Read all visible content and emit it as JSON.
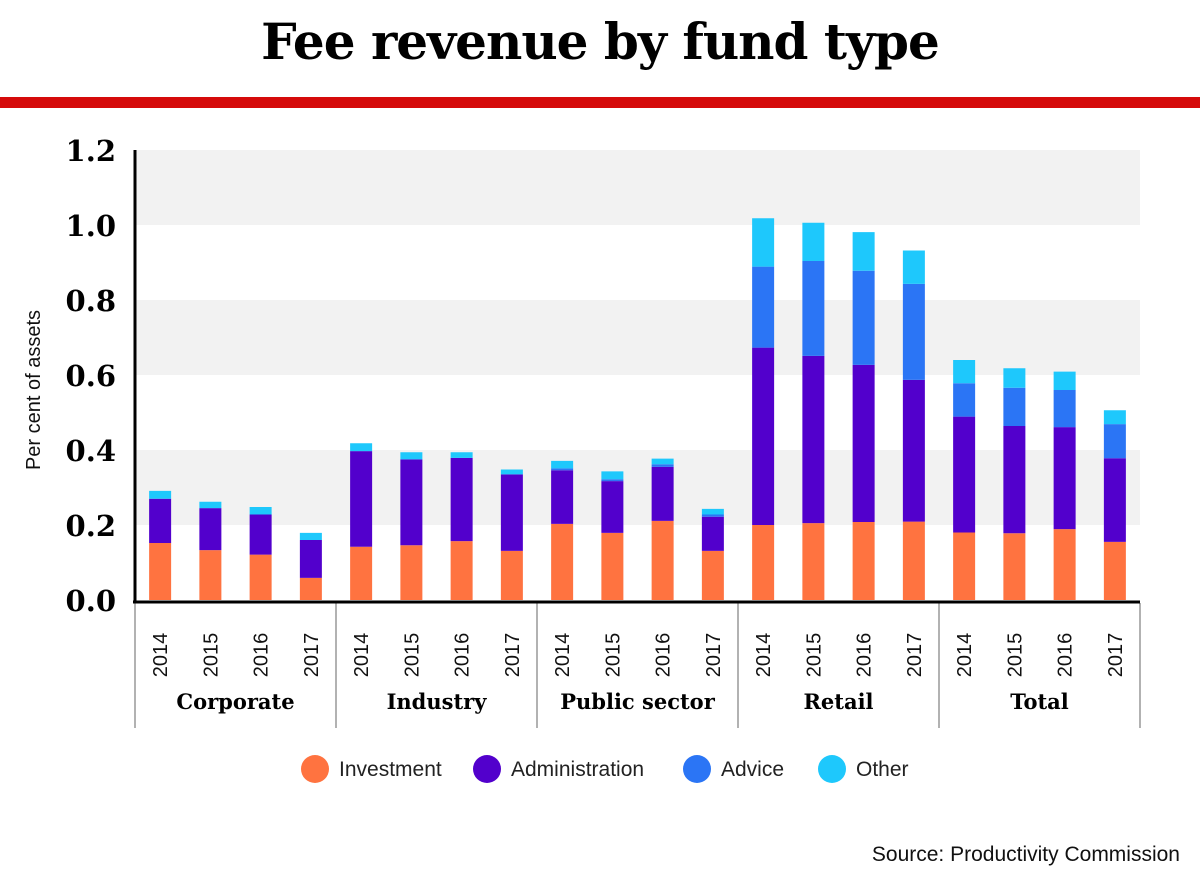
{
  "title": "Fee revenue by fund type",
  "source": "Source: Productivity Commission",
  "colors": {
    "accent": "#d50a0a",
    "Investment": "#ff7340",
    "Administration": "#5200cc",
    "Advice": "#2b75f5",
    "Other": "#1ec8fc",
    "band": "#f2f2f2"
  },
  "chart_data": {
    "type": "bar",
    "stacked": true,
    "title": "Fee revenue by fund type",
    "ylabel": "Per cent of assets",
    "xlabel": "",
    "ylim": [
      0,
      1.2
    ],
    "yticks": [
      "0.0",
      "0.2",
      "0.4",
      "0.6",
      "0.8",
      "1.0",
      "1.2"
    ],
    "legend_position": "bottom",
    "groups": [
      "Corporate",
      "Industry",
      "Public sector",
      "Retail",
      "Total"
    ],
    "years": [
      "2014",
      "2015",
      "2016",
      "2017"
    ],
    "series": [
      {
        "name": "Investment",
        "values": [
          [
            0.152,
            0.133,
            0.121,
            0.059
          ],
          [
            0.142,
            0.146,
            0.157,
            0.131
          ],
          [
            0.203,
            0.179,
            0.211,
            0.131
          ],
          [
            0.2,
            0.205,
            0.208,
            0.209
          ],
          [
            0.18,
            0.178,
            0.189,
            0.155
          ]
        ]
      },
      {
        "name": "Administration",
        "values": [
          [
            0.118,
            0.112,
            0.107,
            0.101
          ],
          [
            0.255,
            0.229,
            0.222,
            0.204
          ],
          [
            0.143,
            0.138,
            0.144,
            0.091
          ],
          [
            0.473,
            0.446,
            0.419,
            0.378
          ],
          [
            0.309,
            0.286,
            0.272,
            0.223
          ]
        ]
      },
      {
        "name": "Advice",
        "values": [
          [
            0,
            0,
            0,
            0
          ],
          [
            0,
            0,
            0,
            0
          ],
          [
            0.005,
            0.005,
            0.007,
            0.006
          ],
          [
            0.216,
            0.253,
            0.251,
            0.256
          ],
          [
            0.089,
            0.102,
            0.099,
            0.091
          ]
        ]
      },
      {
        "name": "Other",
        "values": [
          [
            0.021,
            0.017,
            0.02,
            0.019
          ],
          [
            0.021,
            0.019,
            0.015,
            0.013
          ],
          [
            0.02,
            0.021,
            0.015,
            0.015
          ],
          [
            0.129,
            0.102,
            0.103,
            0.089
          ],
          [
            0.062,
            0.052,
            0.049,
            0.037
          ]
        ]
      }
    ]
  }
}
